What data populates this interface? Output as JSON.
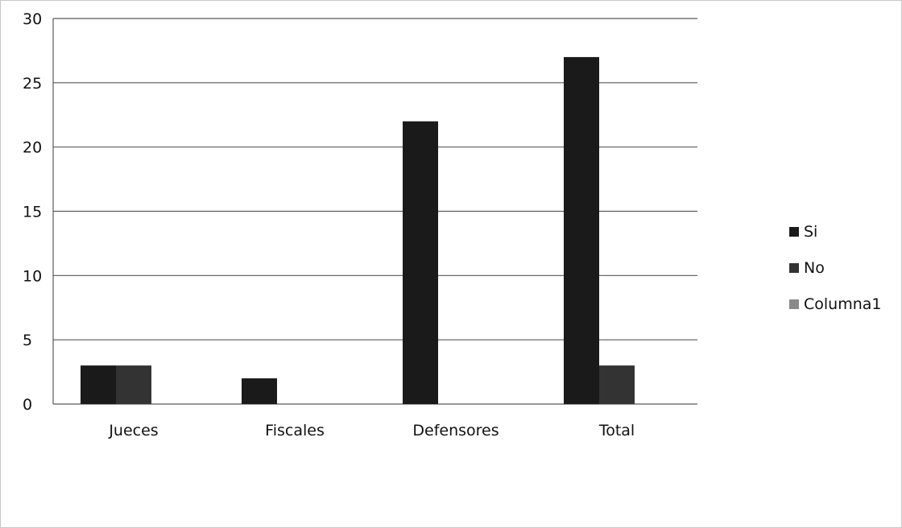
{
  "chart_data": {
    "type": "bar",
    "title": "",
    "xlabel": "",
    "ylabel": "",
    "categories": [
      "Jueces",
      "Fiscales",
      "Defensores",
      "Total"
    ],
    "series": [
      {
        "name": "Si",
        "values": [
          3,
          2,
          22,
          27
        ],
        "color": "#1a1a1a"
      },
      {
        "name": "No",
        "values": [
          3,
          0,
          0,
          3
        ],
        "color": "#333333"
      },
      {
        "name": "Columna1",
        "values": [
          0,
          0,
          0,
          0
        ],
        "color": "#8a8a8a"
      }
    ],
    "ylim": [
      0,
      30
    ],
    "yticks": [
      "0",
      "5",
      "10",
      "15",
      "20",
      "25",
      "30"
    ],
    "grid": true,
    "legend_position": "right"
  }
}
